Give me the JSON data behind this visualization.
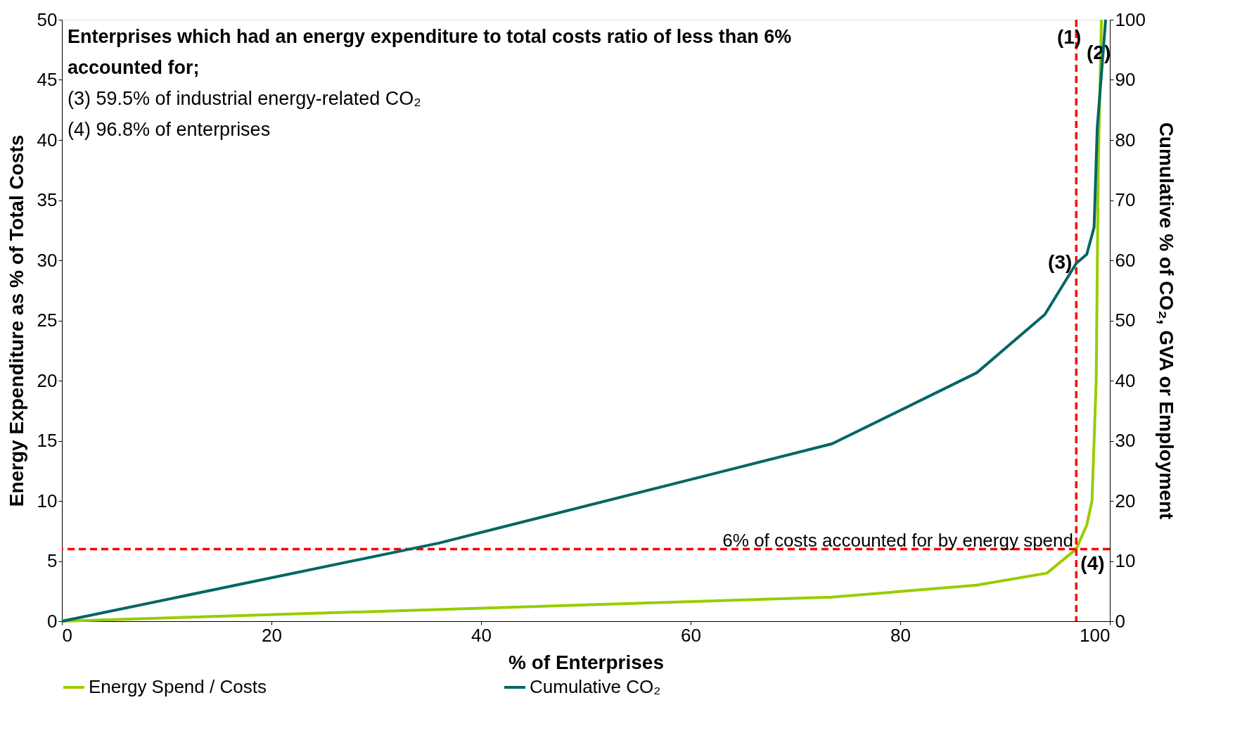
{
  "chart_data": {
    "type": "line",
    "xlabel": "% of Enterprises",
    "ylabel": "Energy Expenditure as % of Total Costs",
    "y2label": "Cumulative % of  CO₂, GVA or Employment",
    "xlim": [
      0,
      100
    ],
    "xticks": [
      0,
      20,
      40,
      60,
      80,
      100
    ],
    "ylim": [
      0,
      50
    ],
    "yticks": [
      0,
      5,
      10,
      15,
      20,
      25,
      30,
      35,
      40,
      45,
      50
    ],
    "y2lim": [
      0,
      100
    ],
    "y2ticks": [
      0,
      10,
      20,
      30,
      40,
      50,
      60,
      70,
      80,
      90,
      100
    ],
    "grid": false,
    "legend": "bottom",
    "marker": "none",
    "line_style": "solid",
    "series": [
      {
        "name": "Energy Spend / Costs",
        "color": "#99cc00",
        "x": [
          0,
          73.5,
          87.3,
          94,
          96.8,
          97.8,
          98.3,
          98.7,
          98.9,
          99.2
        ],
        "values": [
          0,
          2,
          3,
          4,
          6,
          8,
          10,
          20,
          38,
          50
        ]
      },
      {
        "name": "Cumulative CO₂",
        "color": "#006666",
        "axis": "y2",
        "x": [
          0,
          36,
          73.5,
          87.3,
          93.8,
          96.8,
          97.8,
          98.5,
          98.8,
          99.6
        ],
        "values": [
          0,
          13,
          29.5,
          41.3,
          51,
          59.5,
          61,
          65.5,
          82,
          100
        ]
      }
    ],
    "ref_lines": [
      {
        "axis": "y",
        "value": 6,
        "label": "6% of costs accounted for by energy spend",
        "color": "#ff0000",
        "line_style": "dashed"
      },
      {
        "axis": "x",
        "value": 96.8,
        "label": null,
        "color": "#ff0000",
        "line_style": "dashed"
      }
    ],
    "annotations": [
      "Enterprises which had an energy expenditure to total costs ratio of less than 6%",
      "accounted for;",
      "(3) 59.5% of industrial energy-related CO₂",
      "(4) 96.8% of enterprises",
      "(1)",
      "(2)",
      {
        "text": "(3)",
        "x": 96.8,
        "y": 29.75
      },
      {
        "text": "(4)",
        "x": 96.8,
        "y": 6
      }
    ]
  }
}
